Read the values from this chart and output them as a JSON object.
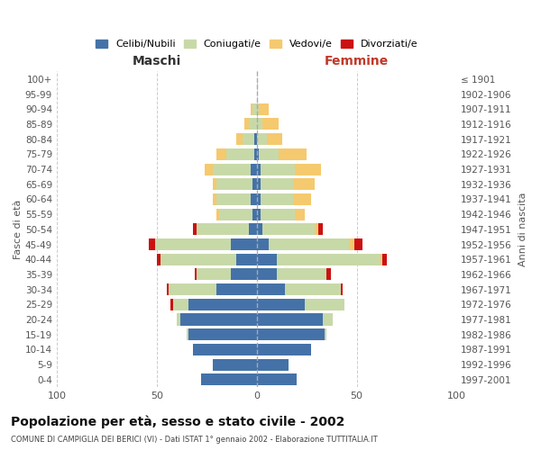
{
  "age_groups": [
    "100+",
    "95-99",
    "90-94",
    "85-89",
    "80-84",
    "75-79",
    "70-74",
    "65-69",
    "60-64",
    "55-59",
    "50-54",
    "45-49",
    "40-44",
    "35-39",
    "30-34",
    "25-29",
    "20-24",
    "15-19",
    "10-14",
    "5-9",
    "0-4"
  ],
  "birth_years": [
    "≤ 1901",
    "1902-1906",
    "1907-1911",
    "1912-1916",
    "1917-1921",
    "1922-1926",
    "1927-1931",
    "1932-1936",
    "1937-1941",
    "1942-1946",
    "1947-1951",
    "1952-1956",
    "1957-1961",
    "1962-1966",
    "1967-1971",
    "1972-1976",
    "1977-1981",
    "1982-1986",
    "1987-1991",
    "1992-1996",
    "1997-2001"
  ],
  "maschi": {
    "celibi": [
      0,
      0,
      0,
      0,
      1,
      1,
      3,
      2,
      3,
      2,
      4,
      13,
      10,
      13,
      20,
      34,
      38,
      34,
      32,
      22,
      28
    ],
    "coniugati": [
      0,
      0,
      2,
      4,
      6,
      14,
      19,
      18,
      17,
      17,
      26,
      38,
      38,
      17,
      24,
      8,
      2,
      1,
      0,
      0,
      0
    ],
    "vedovi": [
      0,
      0,
      1,
      2,
      3,
      5,
      4,
      2,
      2,
      1,
      0,
      0,
      0,
      0,
      0,
      0,
      0,
      0,
      0,
      0,
      0
    ],
    "divorziati": [
      0,
      0,
      0,
      0,
      0,
      0,
      0,
      0,
      0,
      0,
      2,
      3,
      2,
      1,
      1,
      1,
      0,
      0,
      0,
      0,
      0
    ]
  },
  "femmine": {
    "nubili": [
      0,
      0,
      0,
      0,
      0,
      1,
      2,
      2,
      2,
      2,
      3,
      6,
      10,
      10,
      14,
      24,
      33,
      34,
      27,
      16,
      20
    ],
    "coniugate": [
      0,
      0,
      1,
      3,
      5,
      10,
      17,
      16,
      16,
      17,
      26,
      40,
      52,
      25,
      28,
      20,
      5,
      1,
      0,
      0,
      0
    ],
    "vedove": [
      0,
      0,
      5,
      8,
      8,
      14,
      13,
      11,
      9,
      5,
      2,
      3,
      1,
      0,
      0,
      0,
      0,
      0,
      0,
      0,
      0
    ],
    "divorziate": [
      0,
      0,
      0,
      0,
      0,
      0,
      0,
      0,
      0,
      0,
      2,
      4,
      2,
      2,
      1,
      0,
      0,
      0,
      0,
      0,
      0
    ]
  },
  "colors": {
    "celibi": "#4472a8",
    "coniugati": "#c8d9a8",
    "vedovi": "#f5c96e",
    "divorziati": "#cc1111"
  },
  "xlim": 100,
  "title": "Popolazione per età, sesso e stato civile - 2002",
  "subtitle": "COMUNE DI CAMPIGLIA DEI BERICI (VI) - Dati ISTAT 1° gennaio 2002 - Elaborazione TUTTITALIA.IT",
  "xlabel_left": "Maschi",
  "xlabel_right": "Femmine",
  "ylabel_left": "Fasce di età",
  "ylabel_right": "Anni di nascita",
  "legend_labels": [
    "Celibi/Nubili",
    "Coniugati/e",
    "Vedovi/e",
    "Divorziati/e"
  ]
}
